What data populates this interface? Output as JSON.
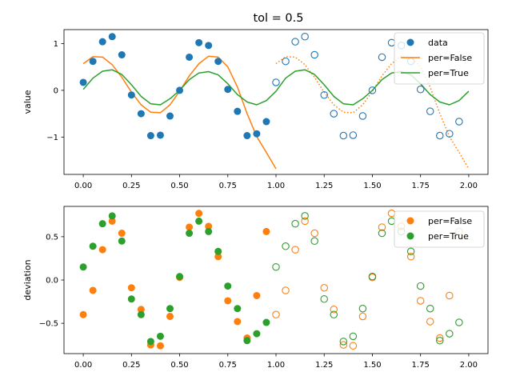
{
  "title": "tol = 0.5",
  "chart_data": [
    {
      "type": "scatter",
      "name": "top",
      "title": "tol = 0.5",
      "xlabel": "",
      "ylabel": "value",
      "xlim": [
        -0.1,
        2.1
      ],
      "ylim": [
        -1.8,
        1.3
      ],
      "xticks": [
        0.0,
        0.25,
        0.5,
        0.75,
        1.0,
        1.25,
        1.5,
        1.75,
        2.0
      ],
      "xtick_labels": [
        "0.00",
        "0.25",
        "0.50",
        "0.75",
        "1.00",
        "1.25",
        "1.50",
        "1.75",
        "2.00"
      ],
      "yticks": [
        -1,
        0,
        1
      ],
      "ytick_labels": [
        "−1",
        "0",
        "1"
      ],
      "legend_position": "top-right",
      "legend": [
        "data",
        "per=False",
        "per=True"
      ],
      "colors": {
        "blue": "#1f77b4",
        "orange": "#ff7f0e",
        "green": "#2ca02c"
      },
      "data_x": [
        0.0,
        0.05,
        0.1,
        0.15,
        0.2,
        0.25,
        0.3,
        0.35,
        0.4,
        0.45,
        0.5,
        0.55,
        0.6,
        0.65,
        0.7,
        0.75,
        0.8,
        0.85,
        0.9,
        0.95
      ],
      "data_y": [
        0.17,
        0.62,
        1.04,
        1.15,
        0.76,
        -0.1,
        -0.5,
        -0.97,
        -0.96,
        -0.55,
        0.0,
        0.71,
        1.02,
        0.96,
        0.62,
        0.02,
        -0.45,
        -0.97,
        -0.93,
        -0.67
      ],
      "data_y_note": "",
      "per_false_x": [
        0.0,
        0.05,
        0.1,
        0.15,
        0.2,
        0.25,
        0.3,
        0.35,
        0.4,
        0.45,
        0.5,
        0.55,
        0.6,
        0.65,
        0.7,
        0.75,
        0.8,
        0.85,
        0.9,
        0.95,
        1.0
      ],
      "per_false_y": [
        0.57,
        0.72,
        0.71,
        0.55,
        0.28,
        -0.04,
        -0.31,
        -0.47,
        -0.48,
        -0.31,
        -0.02,
        0.31,
        0.57,
        0.73,
        0.71,
        0.5,
        0.07,
        -0.5,
        -0.99,
        -1.33,
        -1.68
      ],
      "per_true_x": [
        0.0,
        0.05,
        0.1,
        0.15,
        0.2,
        0.25,
        0.3,
        0.35,
        0.4,
        0.45,
        0.5,
        0.55,
        0.6,
        0.65,
        0.7,
        0.75,
        0.8,
        0.85,
        0.9,
        0.95,
        1.0
      ],
      "per_true_y": [
        0.02,
        0.26,
        0.41,
        0.44,
        0.34,
        0.12,
        -0.13,
        -0.29,
        -0.31,
        -0.18,
        0.0,
        0.23,
        0.37,
        0.4,
        0.33,
        0.14,
        -0.09,
        -0.25,
        -0.31,
        -0.22,
        -0.02
      ]
    },
    {
      "type": "scatter",
      "name": "bottom",
      "title": "",
      "xlabel": "",
      "ylabel": "deviation",
      "xlim": [
        -0.1,
        2.1
      ],
      "ylim": [
        -0.85,
        0.85
      ],
      "xticks": [
        0.0,
        0.25,
        0.5,
        0.75,
        1.0,
        1.25,
        1.5,
        1.75,
        2.0
      ],
      "xtick_labels": [
        "0.00",
        "0.25",
        "0.50",
        "0.75",
        "1.00",
        "1.25",
        "1.50",
        "1.75",
        "2.00"
      ],
      "yticks": [
        -0.5,
        0.0,
        0.5
      ],
      "ytick_labels": [
        "−0.5",
        "0.0",
        "0.5"
      ],
      "legend_position": "top-right",
      "legend": [
        "per=False",
        "per=True"
      ],
      "x": [
        0.0,
        0.05,
        0.1,
        0.15,
        0.2,
        0.25,
        0.3,
        0.35,
        0.4,
        0.45,
        0.5,
        0.55,
        0.6,
        0.65,
        0.7,
        0.75,
        0.8,
        0.85,
        0.9,
        0.95
      ],
      "per_false": [
        -0.4,
        -0.12,
        0.35,
        0.68,
        0.54,
        -0.09,
        -0.34,
        -0.75,
        -0.76,
        -0.42,
        0.03,
        0.61,
        0.77,
        0.62,
        0.27,
        -0.24,
        -0.48,
        -0.67,
        -0.18,
        0.56
      ],
      "per_true": [
        0.15,
        0.39,
        0.65,
        0.74,
        0.45,
        -0.22,
        -0.4,
        -0.71,
        -0.65,
        -0.33,
        0.04,
        0.54,
        0.68,
        0.56,
        0.33,
        -0.07,
        -0.33,
        -0.7,
        -0.62,
        -0.49
      ]
    }
  ]
}
